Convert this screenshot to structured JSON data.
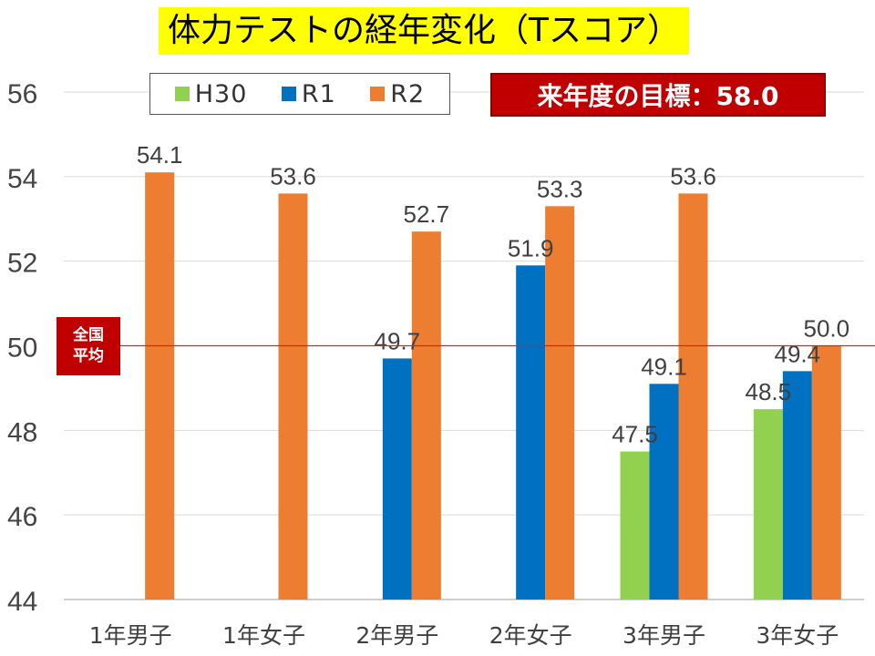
{
  "title": "体力テストの経年変化（Tスコア）",
  "goal_label": "来年度の目標：58.0",
  "average_label_line1": "全国",
  "average_label_line2": "平均",
  "colors": {
    "H30": "#92d050",
    "R1": "#0070c0",
    "R2": "#ed7d31",
    "average_line": "#e02020",
    "title_bg": "#ffff00",
    "goal_bg": "#c00000"
  },
  "chart_data": {
    "type": "bar",
    "categories": [
      "1年男子",
      "1年女子",
      "2年男子",
      "2年女子",
      "3年男子",
      "3年女子"
    ],
    "series": [
      {
        "name": "H30",
        "values": [
          null,
          null,
          null,
          null,
          47.5,
          48.5
        ]
      },
      {
        "name": "R1",
        "values": [
          null,
          null,
          49.7,
          51.9,
          49.1,
          49.4
        ]
      },
      {
        "name": "R2",
        "values": [
          54.1,
          53.6,
          52.7,
          53.3,
          53.6,
          50.0
        ]
      }
    ],
    "value_labels": [
      [
        null,
        null,
        null,
        null,
        "47.5",
        "48.5"
      ],
      [
        null,
        null,
        "49.7",
        "51.9",
        "49.1",
        "49.4"
      ],
      [
        "54.1",
        "53.6",
        "52.7",
        "53.3",
        "53.6",
        "50.0"
      ]
    ],
    "ylim": [
      44,
      56
    ],
    "yticks": [
      "44",
      "46",
      "48",
      "50",
      "52",
      "54",
      "56"
    ],
    "reference_line": 50,
    "grid": true,
    "legend_position": "top-left"
  }
}
